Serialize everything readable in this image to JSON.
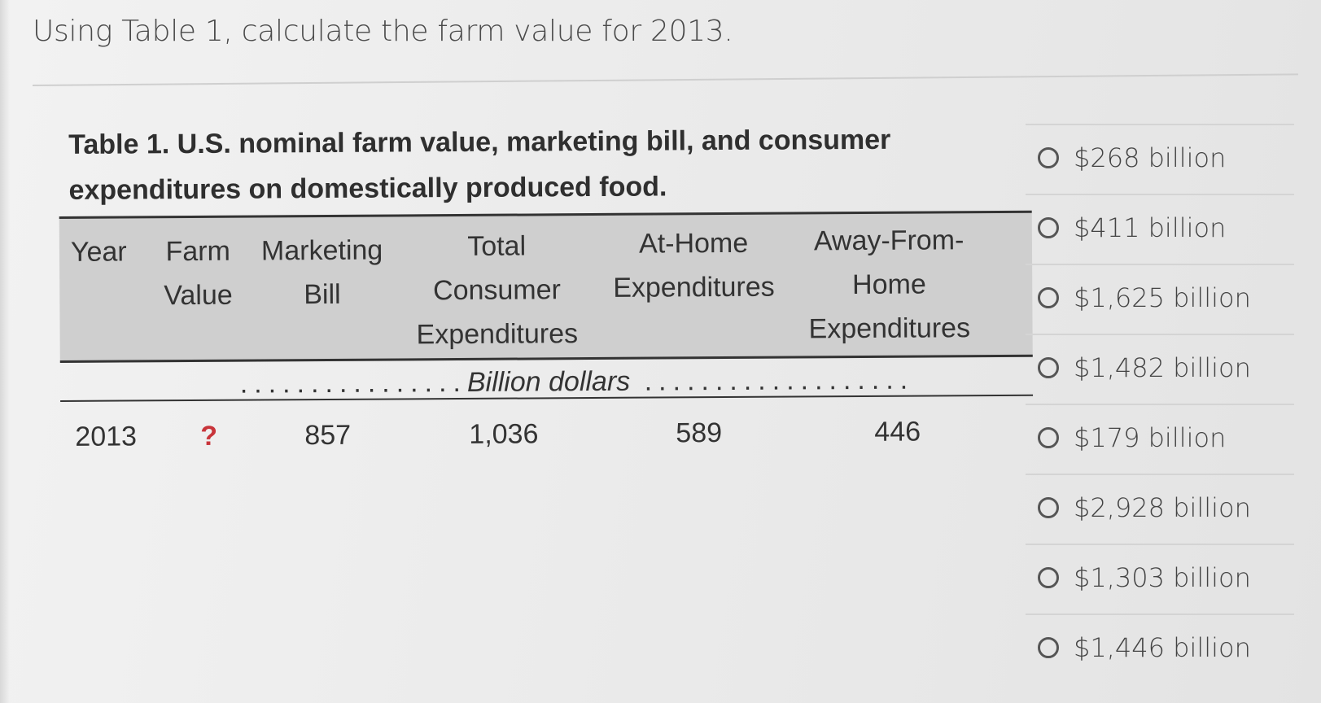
{
  "question": {
    "text": "Using Table 1, calculate the farm value for 2013."
  },
  "table": {
    "title": "Table 1. U.S. nominal farm value, marketing bill, and consumer expenditures on domestically produced food.",
    "title_line1": "Table 1. U.S. nominal farm value, marketing bill, and consumer",
    "title_line2": "expenditures on domestically produced food.",
    "headers": [
      {
        "lines": [
          "Year"
        ]
      },
      {
        "lines": [
          "Farm",
          "Value"
        ]
      },
      {
        "lines": [
          "Marketing",
          "Bill"
        ]
      },
      {
        "lines": [
          "Total",
          "Consumer",
          "Expenditures"
        ]
      },
      {
        "lines": [
          "At-Home",
          "Expenditures"
        ]
      },
      {
        "lines": [
          "Away-From-",
          "Home",
          "Expenditures"
        ]
      }
    ],
    "unit_label": "Billion dollars",
    "rows": [
      {
        "year": "2013",
        "farm_value": "?",
        "marketing_bill": "857",
        "total_consumer": "1,036",
        "at_home": "589",
        "away_from_home": "446"
      }
    ]
  },
  "options": [
    {
      "label": "$268 billion"
    },
    {
      "label": "$411 billion"
    },
    {
      "label": "$1,625 billion"
    },
    {
      "label": "$1,482 billion"
    },
    {
      "label": "$179 billion"
    },
    {
      "label": "$2,928 billion"
    },
    {
      "label": "$1,303 billion"
    },
    {
      "label": "$1,446 billion"
    }
  ],
  "colors": {
    "unknown_value": "#c8343a",
    "header_bg": "#cfcfcf"
  }
}
